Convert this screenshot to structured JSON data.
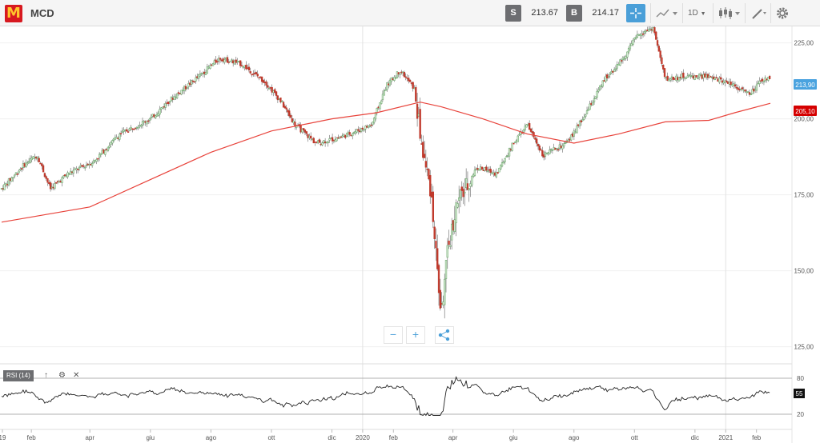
{
  "header": {
    "logo_letter": "M",
    "symbol": "MCD",
    "sell_label": "S",
    "sell_price": "213.67",
    "buy_label": "B",
    "buy_price": "214.17",
    "interval": "1D"
  },
  "zoom": {
    "minus_label": "−",
    "plus_label": "+"
  },
  "rsi": {
    "label": "RSI (14)",
    "last_value": "55",
    "levels": [
      "80",
      "20"
    ]
  },
  "colors": {
    "sma": "#e8433b",
    "accent": "#4a9fd8",
    "up": "#5aa05a",
    "down": "#c0392b",
    "last_badge": "#4aa3df",
    "sma_badge": "#d50000"
  },
  "chart_data": {
    "type": "candlestick",
    "y_ticks": [
      "225,00",
      "200,00",
      "175,00",
      "150,00",
      "125,00"
    ],
    "y_tick_values": [
      225,
      200,
      175,
      150,
      125
    ],
    "ylim": [
      120,
      237
    ],
    "x_ticks": [
      "19",
      "feb",
      "apr",
      "giu",
      "ago",
      "ott",
      "dic",
      "2020",
      "feb",
      "apr",
      "giu",
      "ago",
      "ott",
      "dic",
      "2021",
      "feb"
    ],
    "last_price_label": "213,90",
    "last_price": 213.9,
    "sma_label": "205,10",
    "sma_value": 205.1,
    "price_path": [
      [
        "2019-01-02",
        177
      ],
      [
        "2019-01-25",
        185
      ],
      [
        "2019-02-07",
        188
      ],
      [
        "2019-02-20",
        177
      ],
      [
        "2019-03-10",
        182
      ],
      [
        "2019-04-05",
        186
      ],
      [
        "2019-05-01",
        195
      ],
      [
        "2019-06-01",
        200
      ],
      [
        "2019-06-20",
        206
      ],
      [
        "2019-07-20",
        214
      ],
      [
        "2019-08-10",
        220
      ],
      [
        "2019-09-01",
        218
      ],
      [
        "2019-09-25",
        212
      ],
      [
        "2019-10-10",
        206
      ],
      [
        "2019-10-25",
        198
      ],
      [
        "2019-11-15",
        192
      ],
      [
        "2019-12-10",
        194
      ],
      [
        "2020-01-10",
        198
      ],
      [
        "2020-01-25",
        211
      ],
      [
        "2020-02-08",
        216
      ],
      [
        "2020-02-22",
        210
      ],
      [
        "2020-03-01",
        190
      ],
      [
        "2020-03-10",
        176
      ],
      [
        "2020-03-20",
        135
      ],
      [
        "2020-03-27",
        157
      ],
      [
        "2020-04-05",
        172
      ],
      [
        "2020-04-25",
        184
      ],
      [
        "2020-05-15",
        182
      ],
      [
        "2020-06-01",
        192
      ],
      [
        "2020-06-15",
        198
      ],
      [
        "2020-07-01",
        188
      ],
      [
        "2020-07-25",
        192
      ],
      [
        "2020-08-10",
        200
      ],
      [
        "2020-09-01",
        213
      ],
      [
        "2020-09-20",
        220
      ],
      [
        "2020-10-05",
        228
      ],
      [
        "2020-10-20",
        230
      ],
      [
        "2020-11-01",
        213
      ],
      [
        "2020-11-20",
        214
      ],
      [
        "2020-12-10",
        214
      ],
      [
        "2021-01-05",
        212
      ],
      [
        "2021-01-25",
        208
      ],
      [
        "2021-02-05",
        212
      ],
      [
        "2021-02-15",
        214
      ]
    ],
    "sma_path": [
      [
        "2019-01-02",
        166
      ],
      [
        "2019-04-01",
        171
      ],
      [
        "2019-06-01",
        180
      ],
      [
        "2019-08-01",
        189
      ],
      [
        "2019-10-01",
        196
      ],
      [
        "2019-12-01",
        200
      ],
      [
        "2020-01-15",
        202
      ],
      [
        "2020-02-28",
        205.5
      ],
      [
        "2020-03-20",
        204
      ],
      [
        "2020-05-01",
        200
      ],
      [
        "2020-06-15",
        195
      ],
      [
        "2020-08-01",
        192
      ],
      [
        "2020-09-15",
        195
      ],
      [
        "2020-11-01",
        199
      ],
      [
        "2020-12-15",
        199.5
      ],
      [
        "2021-01-10",
        202
      ],
      [
        "2021-02-15",
        205.1
      ]
    ],
    "rsi_range": [
      0,
      100
    ]
  }
}
